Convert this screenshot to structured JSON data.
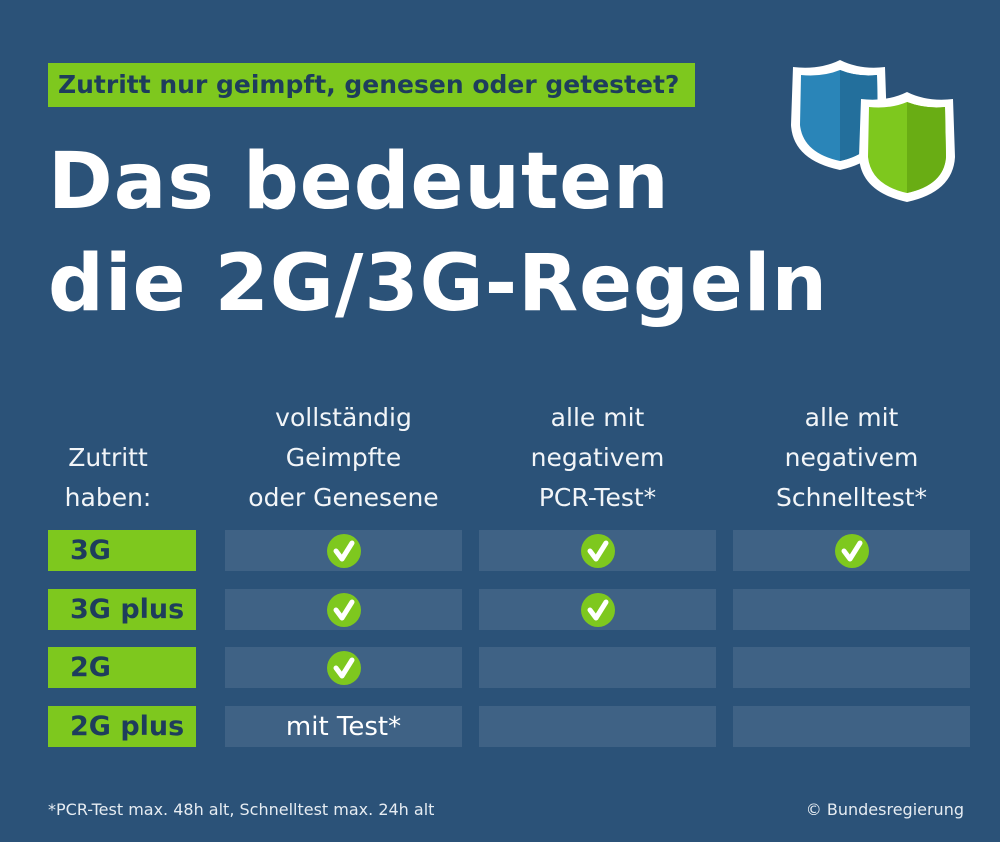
{
  "header": {
    "kicker": "Zutritt nur geimpft, genesen oder getestet?",
    "title_line1": "Das bedeuten",
    "title_line2": "die 2G/3G-Regeln",
    "icon": "shields-icon"
  },
  "colors": {
    "background": "#2b5278",
    "accent": "#7ec81e",
    "cell": "#3f6285",
    "shield_blue": "#2a85b8"
  },
  "table": {
    "row_header": [
      "Zutritt",
      "haben:"
    ],
    "columns": [
      [
        "vollständig",
        "Geimpfte",
        "oder Genesene"
      ],
      [
        "alle mit",
        "negativem",
        "PCR-Test*"
      ],
      [
        "alle mit",
        "negativem",
        "Schnelltest*"
      ]
    ],
    "rows": [
      {
        "label": "3G",
        "cells": [
          "check",
          "check",
          "check"
        ]
      },
      {
        "label": "3G plus",
        "cells": [
          "check",
          "check",
          ""
        ]
      },
      {
        "label": "2G",
        "cells": [
          "check",
          "",
          ""
        ]
      },
      {
        "label": "2G plus",
        "cells": [
          "mit Test*",
          "",
          ""
        ]
      }
    ]
  },
  "footer": {
    "note": "*PCR-Test max. 48h alt, Schnelltest max. 24h alt",
    "credit": "© Bundesregierung"
  }
}
